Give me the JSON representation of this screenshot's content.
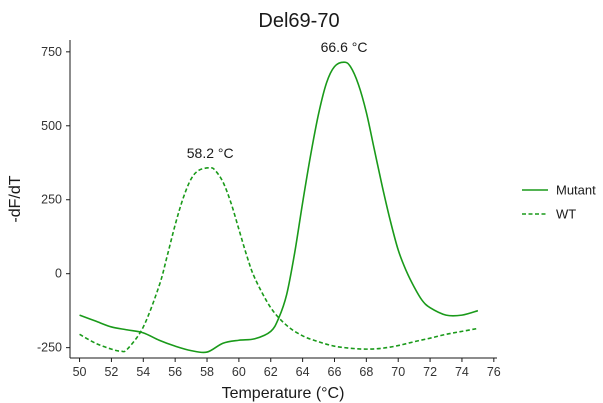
{
  "chart_data": {
    "type": "line",
    "title": "Del69-70",
    "xlabel": "Temperature (°C)",
    "ylabel": "-dF/dT",
    "xlim": [
      49.4,
      76.2
    ],
    "ylim": [
      -285,
      790
    ],
    "x_ticks": [
      50,
      52,
      54,
      56,
      58,
      60,
      62,
      64,
      66,
      68,
      70,
      72,
      74,
      76
    ],
    "x_tick_labels": [
      "50",
      "52",
      "54",
      "56",
      "58",
      "60",
      "62",
      "64",
      "66",
      "68",
      "70",
      "72",
      "74",
      "76"
    ],
    "y_ticks": [
      -250,
      0,
      250,
      500,
      750
    ],
    "y_tick_labels": [
      "-250",
      "0",
      "250",
      "500",
      "750"
    ],
    "grid": false,
    "legend_position": "right",
    "series": [
      {
        "name": "Mutant",
        "color": "#1a9a1a",
        "dash": "solid",
        "x": [
          50,
          51,
          52,
          53,
          54,
          55,
          56,
          57,
          58,
          59,
          60,
          61,
          62,
          62.5,
          63,
          63.5,
          64,
          64.5,
          65,
          65.5,
          66,
          66.6,
          67,
          67.5,
          68,
          68.5,
          69,
          69.5,
          70,
          70.5,
          71,
          71.5,
          72,
          73,
          74,
          75
        ],
        "y": [
          -140,
          -160,
          -180,
          -190,
          -200,
          -225,
          -245,
          -260,
          -265,
          -235,
          -225,
          -220,
          -195,
          -150,
          -70,
          70,
          240,
          400,
          540,
          645,
          700,
          715,
          700,
          640,
          545,
          420,
          295,
          180,
          80,
          10,
          -45,
          -90,
          -115,
          -140,
          -140,
          -125
        ]
      },
      {
        "name": "WT",
        "color": "#1a9a1a",
        "dash": "dashed",
        "x": [
          50,
          51,
          52,
          52.6,
          53,
          54,
          55,
          55.5,
          56,
          56.5,
          57,
          57.5,
          58.2,
          58.5,
          59,
          59.5,
          60,
          60.5,
          61,
          62,
          63,
          64,
          65,
          66,
          67,
          68,
          69,
          70,
          71,
          72,
          73,
          74,
          75
        ],
        "y": [
          -205,
          -235,
          -255,
          -262,
          -255,
          -180,
          -40,
          60,
          165,
          255,
          320,
          350,
          358,
          350,
          310,
          240,
          150,
          60,
          -15,
          -115,
          -175,
          -210,
          -230,
          -245,
          -252,
          -255,
          -252,
          -243,
          -230,
          -218,
          -205,
          -195,
          -185
        ]
      }
    ],
    "annotations": [
      {
        "text": "66.6 °C",
        "x": 66.6,
        "y": 715
      },
      {
        "text": "58.2 °C",
        "x": 58.2,
        "y": 358
      }
    ]
  }
}
